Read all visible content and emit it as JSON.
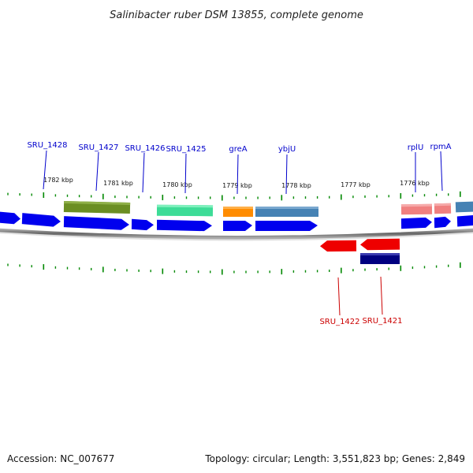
{
  "title": "Salinibacter ruber DSM 13855, complete genome",
  "footer": {
    "accession": "Accession: NC_007677",
    "info": "Topology: circular; Length: 3,551,823 bp; Genes: 2,849"
  },
  "tick_labels": [
    "1782 kbp",
    "1781 kbp",
    "1780 kbp",
    "1779 kbp",
    "1778 kbp",
    "1777 kbp",
    "1776 kbp"
  ],
  "gene_labels_forward": [
    "SRU_1428",
    "SRU_1427",
    "SRU_1426",
    "SRU_1425",
    "greA",
    "ybjU",
    "rplU",
    "rpmA"
  ],
  "gene_labels_reverse": [
    "SRU_1422",
    "SRU_1421"
  ],
  "colors": {
    "forward_cds": "#0000ee",
    "reverse_cds": "#ee0000",
    "tick": "#008800",
    "backbone": "#888888",
    "label_forward": "#0000cc",
    "label_reverse": "#cc0000",
    "feature_olive": "#6b8e23",
    "feature_teal": "#3ddc97",
    "feature_orange": "#ff8c00",
    "feature_steelblue": "#4682b4",
    "feature_salmon": "#f08080",
    "feature_navy": "#000080"
  }
}
